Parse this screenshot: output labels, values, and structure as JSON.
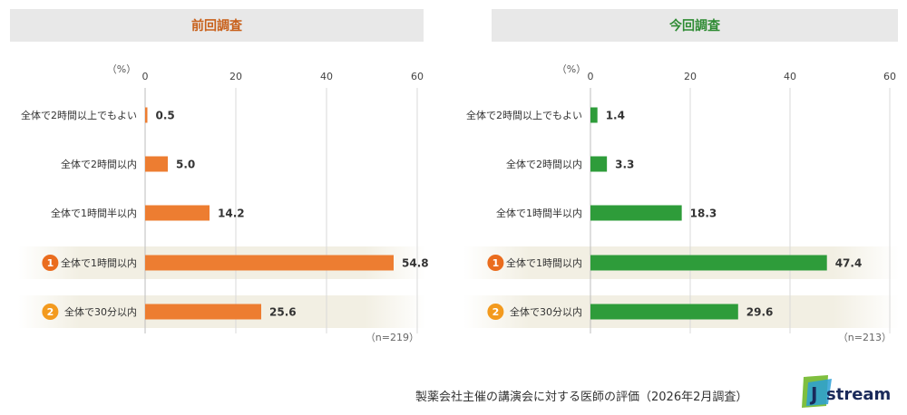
{
  "colors": {
    "previous": "#ed7d31",
    "current": "#2e9c3a",
    "badge1": "#ea6c1e",
    "badge2": "#f39a1e",
    "header_bg": "#e8e8e8",
    "grid": "#d9d9d9"
  },
  "chart_data": [
    {
      "type": "bar",
      "orientation": "horizontal",
      "title": "前回調査",
      "unit_label": "（%）",
      "xlim": [
        0,
        60
      ],
      "ticks": [
        "0",
        "20",
        "40",
        "60"
      ],
      "categories": [
        "全体で2時間以上でもよい",
        "全体で2時間以内",
        "全体で1時間半以内",
        "全体で1時間以内",
        "全体で30分以内"
      ],
      "values": [
        0.5,
        5.0,
        14.2,
        54.8,
        25.6
      ],
      "value_labels": [
        "0.5",
        "5.0",
        "14.2",
        "54.8",
        "25.6"
      ],
      "ranks": [
        "",
        "",
        "",
        "1",
        "2"
      ],
      "n_label": "（n=219）"
    },
    {
      "type": "bar",
      "orientation": "horizontal",
      "title": "今回調査",
      "unit_label": "（%）",
      "xlim": [
        0,
        60
      ],
      "ticks": [
        "0",
        "20",
        "40",
        "60"
      ],
      "categories": [
        "全体で2時間以上でもよい",
        "全体で2時間以内",
        "全体で1時間半以内",
        "全体で1時間以内",
        "全体で30分以内"
      ],
      "values": [
        1.4,
        3.3,
        18.3,
        47.4,
        29.6
      ],
      "value_labels": [
        "1.4",
        "3.3",
        "18.3",
        "47.4",
        "29.6"
      ],
      "ranks": [
        "",
        "",
        "",
        "1",
        "2"
      ],
      "n_label": "（n=213）"
    }
  ],
  "footer": {
    "caption": "製薬会社主催の講演会に対する医師の評価（2026年2月調査）",
    "logo_text": "Jstream"
  }
}
